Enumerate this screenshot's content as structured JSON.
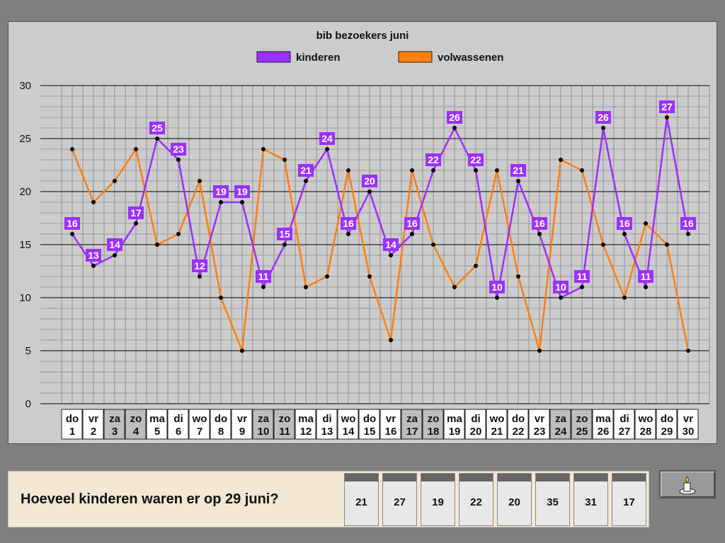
{
  "chart_data": {
    "type": "line",
    "title": "bib bezoekers juni",
    "ylim": [
      0,
      30
    ],
    "yticks": [
      0,
      5,
      10,
      15,
      20,
      25,
      30
    ],
    "grid": true,
    "legend_position": "top",
    "categories": [
      {
        "day": "do",
        "date": "1",
        "weekend": false
      },
      {
        "day": "vr",
        "date": "2",
        "weekend": false
      },
      {
        "day": "za",
        "date": "3",
        "weekend": true
      },
      {
        "day": "zo",
        "date": "4",
        "weekend": true
      },
      {
        "day": "ma",
        "date": "5",
        "weekend": false
      },
      {
        "day": "di",
        "date": "6",
        "weekend": false
      },
      {
        "day": "wo",
        "date": "7",
        "weekend": false
      },
      {
        "day": "do",
        "date": "8",
        "weekend": false
      },
      {
        "day": "vr",
        "date": "9",
        "weekend": false
      },
      {
        "day": "za",
        "date": "10",
        "weekend": true
      },
      {
        "day": "zo",
        "date": "11",
        "weekend": true
      },
      {
        "day": "ma",
        "date": "12",
        "weekend": false
      },
      {
        "day": "di",
        "date": "13",
        "weekend": false
      },
      {
        "day": "wo",
        "date": "14",
        "weekend": false
      },
      {
        "day": "do",
        "date": "15",
        "weekend": false
      },
      {
        "day": "vr",
        "date": "16",
        "weekend": false
      },
      {
        "day": "za",
        "date": "17",
        "weekend": true
      },
      {
        "day": "zo",
        "date": "18",
        "weekend": true
      },
      {
        "day": "ma",
        "date": "19",
        "weekend": false
      },
      {
        "day": "di",
        "date": "20",
        "weekend": false
      },
      {
        "day": "wo",
        "date": "21",
        "weekend": false
      },
      {
        "day": "do",
        "date": "22",
        "weekend": false
      },
      {
        "day": "vr",
        "date": "23",
        "weekend": false
      },
      {
        "day": "za",
        "date": "24",
        "weekend": true
      },
      {
        "day": "zo",
        "date": "25",
        "weekend": true
      },
      {
        "day": "ma",
        "date": "26",
        "weekend": false
      },
      {
        "day": "di",
        "date": "27",
        "weekend": false
      },
      {
        "day": "wo",
        "date": "28",
        "weekend": false
      },
      {
        "day": "do",
        "date": "29",
        "weekend": false
      },
      {
        "day": "vr",
        "date": "30",
        "weekend": false
      }
    ],
    "series": [
      {
        "name": "kinderen",
        "color": "#9b30ff",
        "show_labels": true,
        "values": [
          16,
          13,
          14,
          17,
          25,
          23,
          12,
          19,
          19,
          11,
          15,
          21,
          24,
          16,
          20,
          14,
          16,
          22,
          26,
          22,
          10,
          21,
          16,
          10,
          11,
          26,
          16,
          11,
          27,
          16
        ]
      },
      {
        "name": "volwassenen",
        "color": "#ff7f0e",
        "show_labels": false,
        "values": [
          24,
          19,
          21,
          24,
          15,
          16,
          21,
          10,
          5,
          24,
          23,
          11,
          12,
          22,
          12,
          6,
          22,
          15,
          11,
          13,
          22,
          12,
          5,
          23,
          22,
          15,
          10,
          17,
          15,
          5
        ]
      }
    ]
  },
  "question": {
    "text": "Hoeveel kinderen waren er op 29 juni?",
    "answers": [
      "21",
      "27",
      "19",
      "22",
      "20",
      "35",
      "31",
      "17"
    ]
  },
  "speaker_button": {
    "icon": "speaker-icon"
  },
  "colors": {
    "background": "#7f7f7f",
    "panel": "#cccccc",
    "question_panel": "#f3e8d3",
    "weekend_cell": "#bdbdbd",
    "weekday_cell": "#ffffff"
  }
}
